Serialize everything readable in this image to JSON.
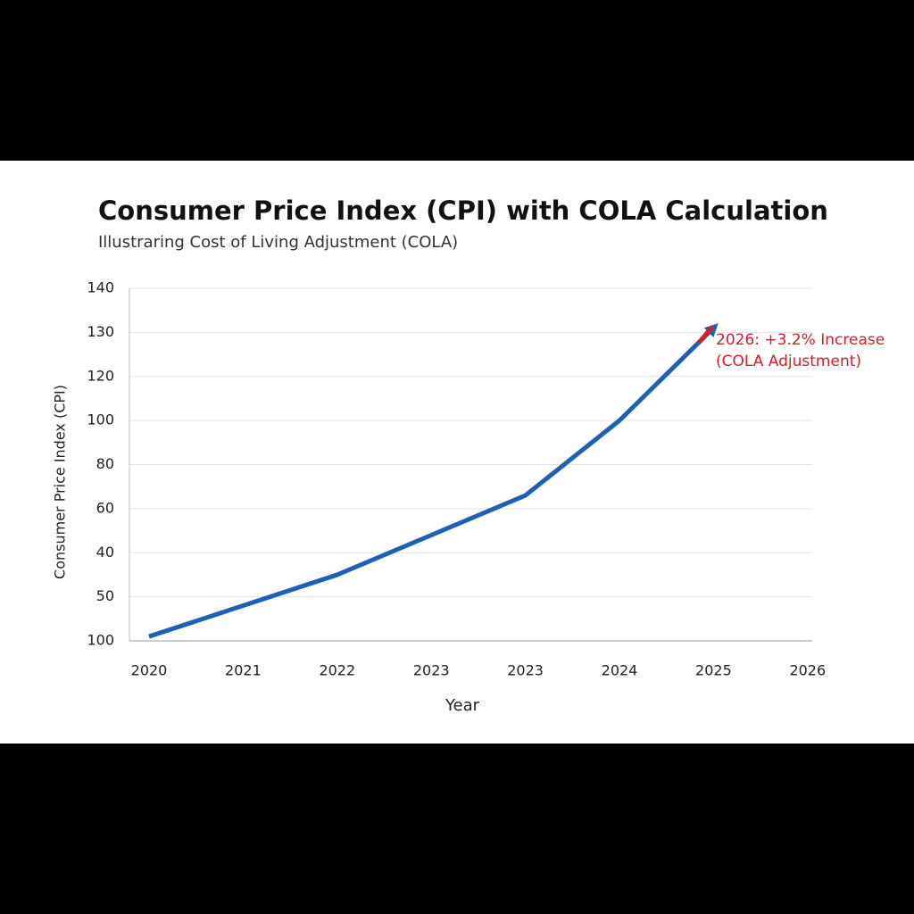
{
  "chart_data": {
    "type": "line",
    "title": "Consumer Price Index (CPI) with COLA Calculation",
    "subtitle": "Illustraring Cost of Living Adjustment (COLA)",
    "x_label": "Year",
    "y_label": "Consumer Price Index (CPI)",
    "categories": [
      "2020",
      "2021",
      "2022",
      "2023",
      "2023",
      "2024",
      "2025",
      "2026"
    ],
    "series": [
      {
        "name": "CPI",
        "color": "#1f5fb5",
        "values": [
          0.1,
          0.8,
          1.5,
          2.4,
          3.3,
          5.0,
          7.1,
          null
        ]
      }
    ],
    "ylim": [
      0,
      8
    ],
    "yticks": [
      {
        "value": 0,
        "label": "100"
      },
      {
        "value": 1,
        "label": "50"
      },
      {
        "value": 2,
        "label": "40"
      },
      {
        "value": 3,
        "label": "60"
      },
      {
        "value": 4,
        "label": "80"
      },
      {
        "value": 5,
        "label": "100"
      },
      {
        "value": 6,
        "label": "120"
      },
      {
        "value": 7,
        "label": "130"
      },
      {
        "value": 8,
        "label": "140"
      }
    ],
    "grid": true,
    "annotation": [
      "2026: +3.2% Increase",
      "(COLA Adjustment)"
    ],
    "annotation_color": "#d0202e"
  }
}
